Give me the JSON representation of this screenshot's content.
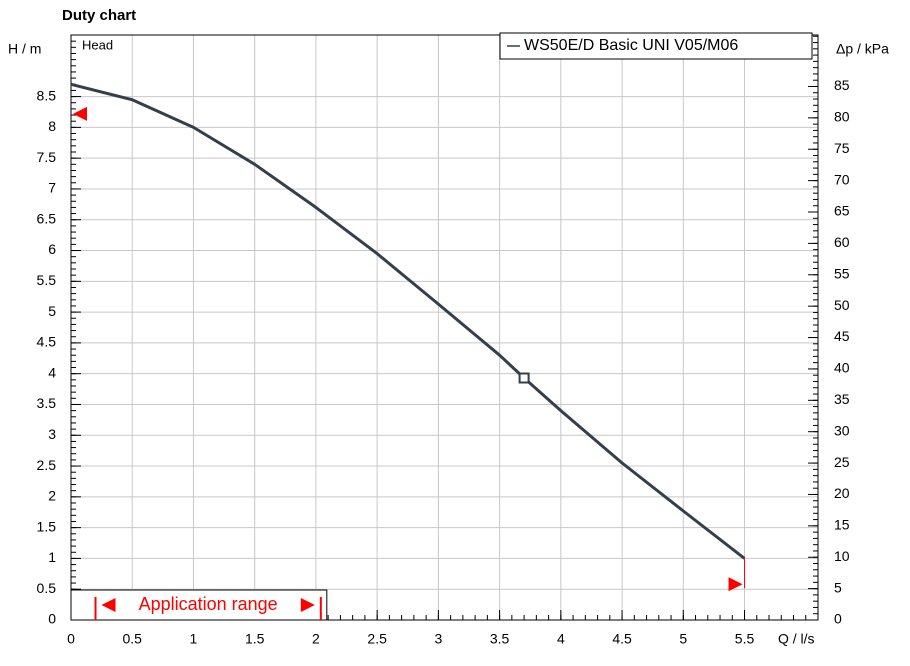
{
  "chart_data": {
    "type": "line",
    "title": "Duty chart",
    "y_label": "H / m",
    "y2_label": "Δp / kPa",
    "x_label": "Q / l/s",
    "plot_label": "Head",
    "xlim": [
      0,
      6.1
    ],
    "xticks": [
      0,
      0.5,
      1,
      1.5,
      2,
      2.5,
      3,
      3.5,
      4,
      4.5,
      5,
      5.5
    ],
    "x_minor_step": 0.1,
    "ylim": [
      0,
      9.5
    ],
    "yticks": [
      0,
      0.5,
      1,
      1.5,
      2,
      2.5,
      3,
      3.5,
      4,
      4.5,
      5,
      5.5,
      6,
      6.5,
      7,
      7.5,
      8,
      8.5
    ],
    "y_minor_step": 0.1,
    "y2lim": [
      0,
      93.2
    ],
    "y2ticks": [
      0,
      5,
      10,
      15,
      20,
      25,
      30,
      35,
      40,
      45,
      50,
      55,
      60,
      65,
      70,
      75,
      80,
      85
    ],
    "y2_minor_step": 1,
    "grid": true,
    "legend": "top-right",
    "series": [
      {
        "name": "WS50E/D Basic UNI V05/M06",
        "color": "#333f4c",
        "x": [
          0,
          0.5,
          1,
          1.5,
          2,
          2.5,
          3,
          3.5,
          3.7,
          4,
          4.5,
          5,
          5.5
        ],
        "values": [
          8.7,
          8.45,
          8.0,
          7.4,
          6.7,
          5.95,
          5.13,
          4.3,
          3.93,
          3.4,
          2.55,
          1.77,
          1.0
        ]
      }
    ],
    "duty_point": {
      "x": 3.7,
      "y": 3.93
    },
    "limit_markers": [
      {
        "x": 0,
        "y": 8.22
      },
      {
        "x": 5.5,
        "y": 0.58
      }
    ],
    "application_range": {
      "text": "Application range",
      "from": 0.2,
      "to": 2.04
    }
  }
}
